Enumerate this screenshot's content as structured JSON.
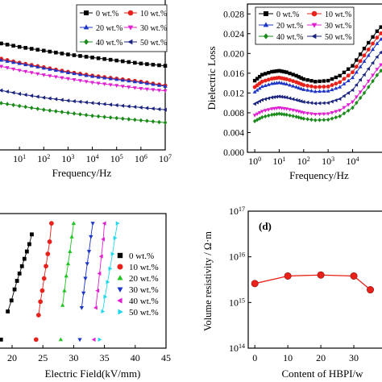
{
  "chart_data": [
    {
      "type": "line",
      "panel": "top-left",
      "xlabel": "Frequency/Hz",
      "x_scale": "log",
      "x_tick_labels": [
        {
          "base": "10",
          "exp": "1"
        },
        {
          "base": "10",
          "exp": "2"
        },
        {
          "base": "10",
          "exp": "3"
        },
        {
          "base": "10",
          "exp": "4"
        },
        {
          "base": "10",
          "exp": "5"
        },
        {
          "base": "10",
          "exp": "6"
        },
        {
          "base": "10",
          "exp": "7"
        }
      ],
      "legend_position": "top-right",
      "series": [
        {
          "name": "0 wt.%",
          "color": "#000000",
          "marker": "square",
          "x": [
            1,
            10,
            100,
            1000,
            10000,
            100000,
            1000000,
            10000000
          ],
          "y": [
            3.72,
            3.66,
            3.61,
            3.56,
            3.52,
            3.48,
            3.44,
            3.41
          ]
        },
        {
          "name": "10 wt.%",
          "color": "#e8211a",
          "marker": "circle",
          "x": [
            1,
            10,
            100,
            1000,
            10000,
            100000,
            1000000,
            10000000
          ],
          "y": [
            3.52,
            3.45,
            3.39,
            3.33,
            3.28,
            3.24,
            3.2,
            3.15
          ]
        },
        {
          "name": "20 wt.%",
          "color": "#1d35c7",
          "marker": "triangle-up",
          "x": [
            1,
            10,
            100,
            1000,
            10000,
            100000,
            1000000,
            10000000
          ],
          "y": [
            3.5,
            3.44,
            3.38,
            3.32,
            3.27,
            3.23,
            3.19,
            3.14
          ]
        },
        {
          "name": "30 wt.%",
          "color": "#e020d0",
          "marker": "triangle-down",
          "x": [
            1,
            10,
            100,
            1000,
            10000,
            100000,
            1000000,
            10000000
          ],
          "y": [
            3.42,
            3.35,
            3.29,
            3.24,
            3.19,
            3.15,
            3.11,
            3.08
          ]
        },
        {
          "name": "40 wt.%",
          "color": "#1a8a1a",
          "marker": "diamond",
          "x": [
            1,
            10,
            100,
            1000,
            10000,
            100000,
            1000000,
            10000000
          ],
          "y": [
            2.93,
            2.88,
            2.83,
            2.79,
            2.75,
            2.72,
            2.69,
            2.66
          ]
        },
        {
          "name": "50 wt.%",
          "color": "#1a237e",
          "marker": "triangle-left",
          "x": [
            1,
            10,
            100,
            1000,
            10000,
            100000,
            1000000,
            10000000
          ],
          "y": [
            3.1,
            3.04,
            2.99,
            2.95,
            2.92,
            2.89,
            2.86,
            2.83
          ]
        }
      ]
    },
    {
      "type": "line",
      "panel": "top-right",
      "ylabel": "Dielectric Loss",
      "xlabel": "Frequency/Hz",
      "x_scale": "log",
      "ylim": [
        0,
        0.03
      ],
      "y_ticks": [
        "0.000",
        "0.004",
        "0.008",
        "0.012",
        "0.016",
        "0.020",
        "0.024",
        "0.028"
      ],
      "x_tick_labels": [
        {
          "base": "10",
          "exp": "0"
        },
        {
          "base": "10",
          "exp": "1"
        },
        {
          "base": "10",
          "exp": "2"
        },
        {
          "base": "10",
          "exp": "3"
        },
        {
          "base": "10",
          "exp": "4"
        }
      ],
      "legend_position": "top-left",
      "series": [
        {
          "name": "0 wt.%",
          "color": "#000000",
          "marker": "square",
          "x": [
            1,
            2,
            5,
            10,
            20,
            50,
            100,
            300,
            1000,
            3000,
            10000,
            30000,
            100000,
            300000
          ],
          "y": [
            0.0145,
            0.0157,
            0.0163,
            0.0165,
            0.0162,
            0.0155,
            0.0148,
            0.0143,
            0.0145,
            0.0155,
            0.0175,
            0.021,
            0.0245,
            0.027
          ]
        },
        {
          "name": "10 wt.%",
          "color": "#e8211a",
          "marker": "circle",
          "x": [
            1,
            2,
            5,
            10,
            20,
            50,
            100,
            300,
            1000,
            3000,
            10000,
            30000,
            100000,
            300000
          ],
          "y": [
            0.0132,
            0.0143,
            0.0149,
            0.0151,
            0.0148,
            0.0142,
            0.0136,
            0.0132,
            0.0133,
            0.0142,
            0.0162,
            0.0196,
            0.0232,
            0.0258
          ]
        },
        {
          "name": "20 wt.%",
          "color": "#1d35c7",
          "marker": "triangle-up",
          "x": [
            1,
            2,
            5,
            10,
            20,
            50,
            100,
            300,
            1000,
            3000,
            10000,
            30000,
            100000,
            300000
          ],
          "y": [
            0.0122,
            0.0133,
            0.0139,
            0.0141,
            0.0138,
            0.0132,
            0.0127,
            0.0123,
            0.0124,
            0.0132,
            0.0151,
            0.0184,
            0.022,
            0.0246
          ]
        },
        {
          "name": "30 wt.%",
          "color": "#e020d0",
          "marker": "triangle-down",
          "x": [
            1,
            2,
            5,
            10,
            20,
            50,
            100,
            300,
            1000,
            3000,
            10000,
            30000,
            100000,
            300000
          ],
          "y": [
            0.0075,
            0.0083,
            0.0088,
            0.009,
            0.0088,
            0.0084,
            0.008,
            0.0077,
            0.0078,
            0.0085,
            0.0102,
            0.0132,
            0.0168,
            0.0195
          ]
        },
        {
          "name": "40 wt.%",
          "color": "#1a8a1a",
          "marker": "diamond",
          "x": [
            1,
            2,
            5,
            10,
            20,
            50,
            100,
            300,
            1000,
            3000,
            10000,
            30000,
            100000,
            300000
          ],
          "y": [
            0.0063,
            0.0071,
            0.0076,
            0.0078,
            0.0076,
            0.0072,
            0.0068,
            0.0065,
            0.0066,
            0.0073,
            0.009,
            0.012,
            0.0156,
            0.0183
          ]
        },
        {
          "name": "50 wt.%",
          "color": "#1a237e",
          "marker": "triangle-left",
          "x": [
            1,
            2,
            5,
            10,
            20,
            50,
            100,
            300,
            1000,
            3000,
            10000,
            30000,
            100000,
            300000
          ],
          "y": [
            0.0098,
            0.0106,
            0.0111,
            0.0113,
            0.0111,
            0.0106,
            0.0102,
            0.0099,
            0.01,
            0.0108,
            0.0126,
            0.0157,
            0.0193,
            0.022
          ]
        }
      ]
    },
    {
      "type": "scatter",
      "panel": "bottom-left",
      "xlabel": "Electric Field(kV/mm)",
      "x_ticks": [
        20,
        25,
        30,
        35,
        40,
        45
      ],
      "legend_position": "right",
      "series": [
        {
          "name": "0 wt.%",
          "color": "#000000",
          "marker": "square",
          "x": [
            18.2,
            19.3,
            19.9,
            20.4,
            20.8,
            21.2,
            21.6,
            22.0,
            22.4,
            22.8,
            23.2
          ],
          "y": [
            0.02,
            0.25,
            0.34,
            0.43,
            0.5,
            0.56,
            0.62,
            0.68,
            0.74,
            0.8,
            0.88
          ]
        },
        {
          "name": "10 wt.%",
          "color": "#e8211a",
          "marker": "circle",
          "x": [
            23.9,
            24.3,
            24.6,
            24.9,
            25.2,
            25.5,
            25.8,
            26.1,
            26.4
          ],
          "y": [
            0.02,
            0.22,
            0.33,
            0.42,
            0.52,
            0.62,
            0.72,
            0.82,
            0.97
          ]
        },
        {
          "name": "20 wt.%",
          "color": "#22c422",
          "marker": "triangle-up",
          "x": [
            27.9,
            28.2,
            28.5,
            28.8,
            29.1,
            29.4,
            29.7,
            30.0
          ],
          "y": [
            0.02,
            0.3,
            0.42,
            0.54,
            0.64,
            0.74,
            0.86,
            0.97
          ]
        },
        {
          "name": "30 wt.%",
          "color": "#1d35c7",
          "marker": "triangle-down",
          "x": [
            31.0,
            31.3,
            31.6,
            31.9,
            32.2,
            32.5,
            32.8,
            33.1
          ],
          "y": [
            0.02,
            0.28,
            0.4,
            0.52,
            0.64,
            0.74,
            0.86,
            0.97
          ]
        },
        {
          "name": "40 wt.%",
          "color": "#e020d0",
          "marker": "triangle-left",
          "x": [
            33.3,
            33.6,
            33.9,
            34.2,
            34.5,
            34.8,
            35.0
          ],
          "y": [
            0.02,
            0.28,
            0.42,
            0.56,
            0.7,
            0.84,
            0.97
          ]
        },
        {
          "name": "50 wt.%",
          "color": "#22d8e8",
          "marker": "triangle-right",
          "x": [
            34.2,
            34.7,
            35.1,
            35.5,
            35.9,
            36.3,
            36.7,
            37.1
          ],
          "y": [
            0.02,
            0.25,
            0.37,
            0.49,
            0.6,
            0.72,
            0.85,
            0.97
          ]
        }
      ]
    },
    {
      "type": "line",
      "panel": "bottom-right",
      "panel_label": "(d)",
      "ylabel": "Volume resistivity / Ω·m",
      "xlabel": "Content of HBPI/w",
      "y_scale": "log",
      "ylim": [
        100000000000000.0,
        1e+17
      ],
      "y_tick_labels": [
        {
          "base": "10",
          "exp": "14"
        },
        {
          "base": "10",
          "exp": "15"
        },
        {
          "base": "10",
          "exp": "16"
        },
        {
          "base": "10",
          "exp": "17"
        }
      ],
      "x_ticks": [
        0,
        10,
        20,
        30
      ],
      "series": [
        {
          "color": "#e8211a",
          "marker": "circle",
          "x": [
            0,
            10,
            20,
            30,
            35
          ],
          "y": [
            2600000000000000.0,
            3800000000000000.0,
            4000000000000000.0,
            3800000000000000.0,
            1900000000000000.0
          ]
        }
      ]
    }
  ]
}
